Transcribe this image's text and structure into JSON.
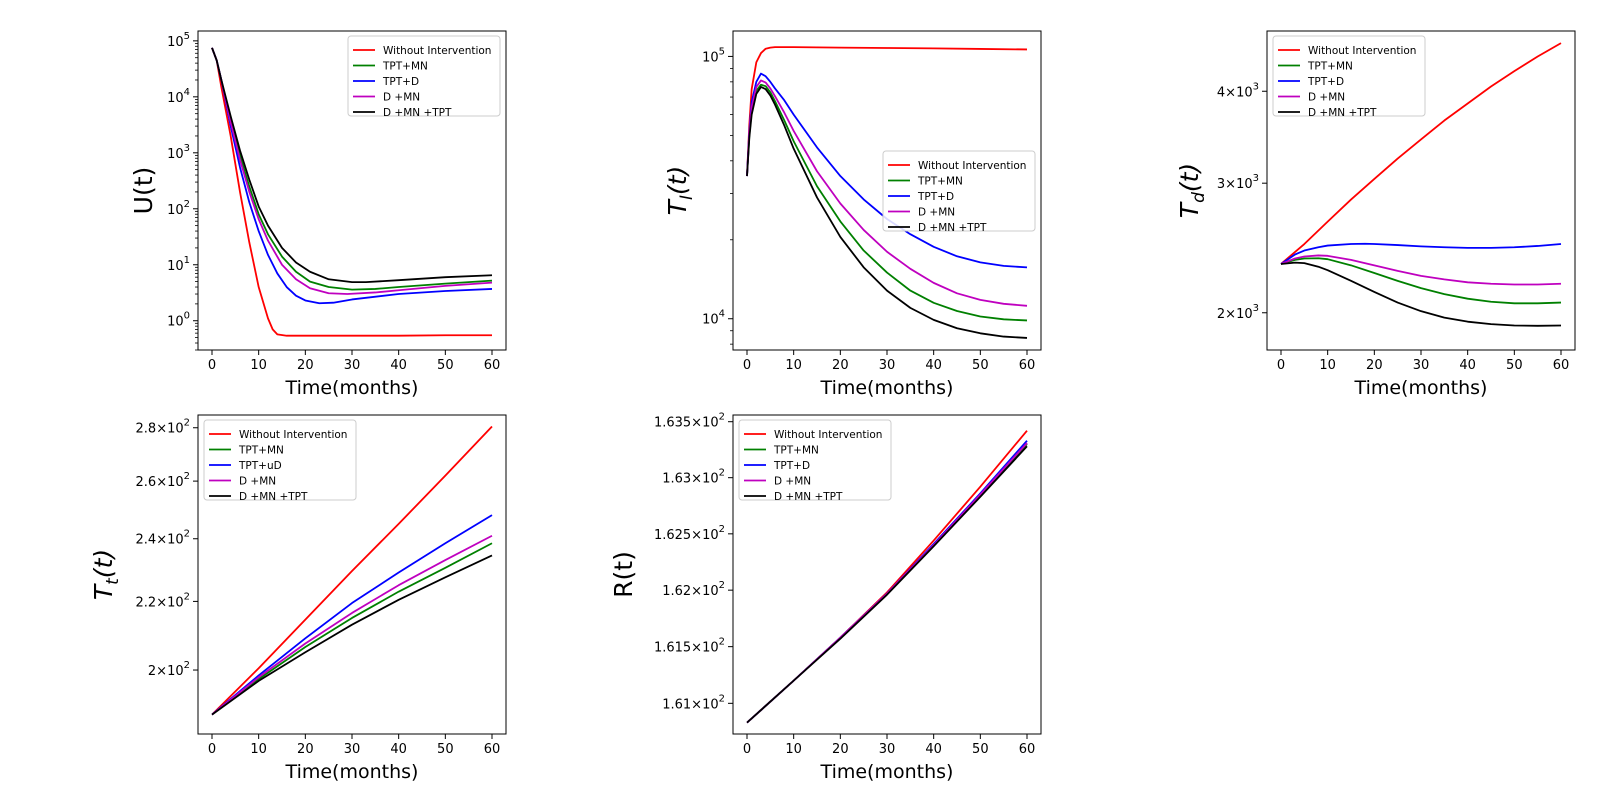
{
  "colors": {
    "red": "#ff0000",
    "green": "#008000",
    "blue": "#0000ff",
    "magenta": "#bf00bf",
    "black": "#000000"
  },
  "chart_data": [
    {
      "id": "U",
      "type": "line",
      "yscale": "log",
      "ylabel": "U(t)",
      "xlabel": "Time(months)",
      "xlim": [
        -3,
        63
      ],
      "xticks": [
        0,
        10,
        20,
        30,
        40,
        50,
        60
      ],
      "xtick_labels": [
        "0",
        "10",
        "20",
        "30",
        "40",
        "50",
        "60"
      ],
      "ylim": [
        0.3,
        150000
      ],
      "yticks": [
        1,
        10,
        100,
        1000,
        10000,
        100000
      ],
      "ytick_labels": [
        [
          "10",
          "0"
        ],
        [
          "10",
          "1"
        ],
        [
          "10",
          "2"
        ],
        [
          "10",
          "3"
        ],
        [
          "10",
          "4"
        ],
        [
          "10",
          "5"
        ]
      ],
      "legend_loc": "upper-right",
      "series": [
        {
          "name": "Without Intervention",
          "color": "red",
          "x": [
            0,
            1,
            2,
            4,
            6,
            8,
            10,
            12,
            13,
            14,
            16,
            20,
            30,
            40,
            50,
            60
          ],
          "y": [
            75000,
            45000,
            15000,
            2000,
            200,
            25,
            4,
            1.1,
            0.7,
            0.57,
            0.54,
            0.54,
            0.54,
            0.54,
            0.55,
            0.55
          ]
        },
        {
          "name": "TPT+MN",
          "color": "green",
          "x": [
            0,
            1,
            2,
            4,
            6,
            8,
            10,
            12,
            15,
            18,
            21,
            25,
            30,
            35,
            40,
            50,
            60
          ],
          "y": [
            75000,
            45000,
            20000,
            4000,
            900,
            250,
            80,
            35,
            14,
            7.5,
            5,
            4,
            3.6,
            3.7,
            4,
            4.6,
            5.2
          ]
        },
        {
          "name": "TPT+D",
          "color": "blue",
          "x": [
            0,
            1,
            2,
            4,
            6,
            8,
            10,
            12,
            14,
            16,
            18,
            20,
            23,
            26,
            30,
            40,
            50,
            60
          ],
          "y": [
            75000,
            45000,
            20000,
            3000,
            550,
            130,
            40,
            15,
            7,
            4,
            2.8,
            2.3,
            2.05,
            2.1,
            2.4,
            3.0,
            3.4,
            3.7
          ]
        },
        {
          "name": "D +MN",
          "color": "magenta",
          "x": [
            0,
            1,
            2,
            4,
            6,
            8,
            10,
            12,
            15,
            18,
            21,
            25,
            29,
            35,
            40,
            50,
            60
          ],
          "y": [
            75000,
            45000,
            20000,
            3500,
            750,
            200,
            65,
            27,
            10,
            5.5,
            3.8,
            3.1,
            3.0,
            3.2,
            3.5,
            4.2,
            4.8
          ]
        },
        {
          "name": "D +MN +TPT",
          "color": "black",
          "x": [
            0,
            1,
            2,
            4,
            6,
            8,
            10,
            12,
            15,
            18,
            21,
            25,
            30,
            33,
            40,
            50,
            60
          ],
          "y": [
            75000,
            45000,
            20000,
            4500,
            1100,
            330,
            110,
            50,
            20,
            11,
            7.5,
            5.5,
            4.9,
            4.9,
            5.3,
            6.0,
            6.5
          ]
        }
      ]
    },
    {
      "id": "TI",
      "type": "line",
      "yscale": "log",
      "ylabel": "T_I(t)",
      "ylabel_main": "T",
      "ylabel_sub": "I",
      "ylabel_tail": "(t)",
      "xlabel": "Time(months)",
      "xlim": [
        -3,
        63
      ],
      "xticks": [
        0,
        10,
        20,
        30,
        40,
        50,
        60
      ],
      "xtick_labels": [
        "0",
        "10",
        "20",
        "30",
        "40",
        "50",
        "60"
      ],
      "ylim": [
        7600,
        125000
      ],
      "yticks": [
        10000,
        100000
      ],
      "ytick_labels": [
        [
          "10",
          "4"
        ],
        [
          "10",
          "5"
        ]
      ],
      "legend_loc": "center-right",
      "series": [
        {
          "name": "Without Intervention",
          "color": "red",
          "x": [
            0,
            0.5,
            1,
            2,
            3,
            4,
            5,
            6,
            8,
            10,
            20,
            30,
            40,
            50,
            60
          ],
          "y": [
            35000,
            55000,
            75000,
            95000,
            103000,
            107000,
            108000,
            108500,
            108500,
            108500,
            108000,
            107700,
            107300,
            106800,
            106300
          ]
        },
        {
          "name": "TPT+MN",
          "color": "green",
          "x": [
            0,
            0.5,
            1,
            2,
            3,
            4,
            5,
            6,
            8,
            10,
            15,
            20,
            25,
            30,
            35,
            40,
            45,
            50,
            55,
            60
          ],
          "y": [
            35000,
            50000,
            62000,
            74000,
            78000,
            77000,
            73000,
            67500,
            57000,
            47500,
            32000,
            23500,
            18200,
            15000,
            12800,
            11500,
            10700,
            10200,
            9950,
            9850
          ]
        },
        {
          "name": "TPT+D",
          "color": "blue",
          "x": [
            0,
            0.5,
            1,
            2,
            3,
            4,
            5,
            6,
            8,
            10,
            15,
            20,
            25,
            30,
            35,
            40,
            45,
            50,
            55,
            60
          ],
          "y": [
            35000,
            52000,
            67000,
            80000,
            86000,
            84000,
            80000,
            75500,
            68000,
            60000,
            45000,
            35000,
            28500,
            24000,
            21000,
            18800,
            17300,
            16400,
            15900,
            15700
          ]
        },
        {
          "name": "D +MN",
          "color": "magenta",
          "x": [
            0,
            0.5,
            1,
            2,
            3,
            4,
            5,
            6,
            8,
            10,
            15,
            20,
            25,
            30,
            35,
            40,
            45,
            50,
            55,
            60
          ],
          "y": [
            35000,
            51000,
            64000,
            76500,
            81000,
            79500,
            75500,
            70500,
            61000,
            52000,
            36500,
            27500,
            21800,
            18000,
            15500,
            13700,
            12500,
            11800,
            11400,
            11200
          ]
        },
        {
          "name": "D +MN +TPT",
          "color": "black",
          "x": [
            0,
            0.5,
            1,
            2,
            3,
            4,
            5,
            6,
            8,
            10,
            15,
            20,
            25,
            30,
            35,
            40,
            45,
            50,
            55,
            60
          ],
          "y": [
            35000,
            49000,
            60000,
            72000,
            76500,
            75000,
            71000,
            65500,
            54500,
            44500,
            29000,
            20500,
            15700,
            12800,
            11000,
            9900,
            9200,
            8800,
            8550,
            8450
          ]
        }
      ]
    },
    {
      "id": "Td",
      "type": "line",
      "yscale": "log",
      "ylabel": "T_d(t)",
      "ylabel_main": "T",
      "ylabel_sub": "d",
      "ylabel_tail": "(t)",
      "xlabel": "Time(months)",
      "xlim": [
        -3,
        63
      ],
      "xticks": [
        0,
        10,
        20,
        30,
        40,
        50,
        60
      ],
      "xtick_labels": [
        "0",
        "10",
        "20",
        "30",
        "40",
        "50",
        "60"
      ],
      "ylim": [
        1780,
        4830
      ],
      "yticks": [
        2000,
        3000,
        4000
      ],
      "ytick_labels": [
        [
          "2",
          "10",
          "3"
        ],
        [
          "3",
          "10",
          "3"
        ],
        [
          "4",
          "10",
          "3"
        ]
      ],
      "legend_loc": "upper-left",
      "series": [
        {
          "name": "Without Intervention",
          "color": "red",
          "x": [
            0,
            5,
            10,
            15,
            20,
            25,
            30,
            35,
            40,
            45,
            50,
            55,
            60
          ],
          "y": [
            2330,
            2480,
            2660,
            2850,
            3040,
            3240,
            3440,
            3650,
            3850,
            4060,
            4260,
            4460,
            4650
          ]
        },
        {
          "name": "TPT+MN",
          "color": "green",
          "x": [
            0,
            3,
            5,
            8,
            10,
            15,
            20,
            25,
            30,
            35,
            40,
            45,
            50,
            55,
            60
          ],
          "y": [
            2330,
            2360,
            2370,
            2372,
            2365,
            2320,
            2265,
            2210,
            2160,
            2120,
            2090,
            2070,
            2060,
            2060,
            2065
          ]
        },
        {
          "name": "TPT+D",
          "color": "blue",
          "x": [
            0,
            3,
            5,
            8,
            10,
            15,
            18,
            20,
            25,
            30,
            35,
            40,
            45,
            50,
            55,
            60
          ],
          "y": [
            2330,
            2400,
            2430,
            2455,
            2468,
            2480,
            2482,
            2480,
            2472,
            2462,
            2455,
            2450,
            2450,
            2455,
            2465,
            2480
          ]
        },
        {
          "name": "D +MN",
          "color": "magenta",
          "x": [
            0,
            3,
            5,
            8,
            10,
            15,
            20,
            25,
            30,
            35,
            40,
            45,
            50,
            55,
            60
          ],
          "y": [
            2330,
            2370,
            2385,
            2393,
            2390,
            2360,
            2320,
            2280,
            2245,
            2220,
            2200,
            2190,
            2185,
            2185,
            2190
          ]
        },
        {
          "name": "D +MN +TPT",
          "color": "black",
          "x": [
            0,
            3,
            5,
            8,
            10,
            15,
            20,
            25,
            30,
            35,
            40,
            45,
            50,
            55,
            60
          ],
          "y": [
            2330,
            2340,
            2336,
            2310,
            2285,
            2210,
            2135,
            2065,
            2010,
            1970,
            1945,
            1930,
            1922,
            1920,
            1922
          ]
        }
      ]
    },
    {
      "id": "Tt",
      "type": "line",
      "yscale": "log",
      "ylabel": "T_t(t)",
      "ylabel_main": "T",
      "ylabel_sub": "t",
      "ylabel_tail": "(t)",
      "xlabel": "Time(months)",
      "xlim": [
        -3,
        63
      ],
      "xticks": [
        0,
        10,
        20,
        30,
        40,
        50,
        60
      ],
      "xtick_labels": [
        "0",
        "10",
        "20",
        "30",
        "40",
        "50",
        "60"
      ],
      "ylim": [
        183,
        285
      ],
      "yticks": [
        200,
        220,
        240,
        260,
        280
      ],
      "ytick_labels": [
        [
          "2",
          "10",
          "2"
        ],
        [
          "2.2",
          "10",
          "2"
        ],
        [
          "2.4",
          "10",
          "2"
        ],
        [
          "2.6",
          "10",
          "2"
        ],
        [
          "2.8",
          "10",
          "2"
        ]
      ],
      "legend_loc": "upper-left",
      "series": [
        {
          "name": "Without Intervention",
          "color": "red",
          "x": [
            0,
            10,
            20,
            30,
            40,
            50,
            60
          ],
          "y": [
            188,
            200.5,
            214.5,
            229.5,
            245,
            262,
            280.5
          ]
        },
        {
          "name": "TPT+MN",
          "color": "green",
          "x": [
            0,
            10,
            20,
            30,
            40,
            50,
            60
          ],
          "y": [
            188,
            197.5,
            206.5,
            215,
            223,
            230.5,
            238.5
          ]
        },
        {
          "name": "TPT+uD",
          "color": "blue",
          "x": [
            0,
            10,
            20,
            30,
            40,
            50,
            60
          ],
          "y": [
            188,
            198.5,
            209,
            219.5,
            229,
            238.5,
            248
          ]
        },
        {
          "name": "D +MN",
          "color": "magenta",
          "x": [
            0,
            10,
            20,
            30,
            40,
            50,
            60
          ],
          "y": [
            188,
            198,
            207.5,
            216.5,
            225,
            233,
            241
          ]
        },
        {
          "name": "D +MN +TPT",
          "color": "black",
          "x": [
            0,
            10,
            20,
            30,
            40,
            50,
            60
          ],
          "y": [
            188,
            197,
            205,
            213,
            220.5,
            227.5,
            234.5
          ]
        }
      ]
    },
    {
      "id": "R",
      "type": "line",
      "yscale": "log",
      "ylabel": "R(t)",
      "xlabel": "Time(months)",
      "xlim": [
        -3,
        63
      ],
      "xticks": [
        0,
        10,
        20,
        30,
        40,
        50,
        60
      ],
      "xtick_labels": [
        "0",
        "10",
        "20",
        "30",
        "40",
        "50",
        "60"
      ],
      "ylim": [
        160.73,
        163.56
      ],
      "yticks": [
        161.0,
        161.5,
        162.0,
        162.5,
        163.0,
        163.5
      ],
      "ytick_labels": [
        [
          "1.61",
          "10",
          "2"
        ],
        [
          "1.615",
          "10",
          "2"
        ],
        [
          "1.62",
          "10",
          "2"
        ],
        [
          "1.625",
          "10",
          "2"
        ],
        [
          "1.63",
          "10",
          "2"
        ],
        [
          "1.635",
          "10",
          "2"
        ]
      ],
      "legend_loc": "upper-left",
      "series": [
        {
          "name": "Without Intervention",
          "color": "red",
          "x": [
            0,
            10,
            20,
            30,
            40,
            50,
            60
          ],
          "y": [
            160.83,
            161.2,
            161.58,
            161.98,
            162.44,
            162.92,
            163.42
          ]
        },
        {
          "name": "TPT+MN",
          "color": "green",
          "x": [
            0,
            10,
            20,
            30,
            40,
            50,
            60
          ],
          "y": [
            160.83,
            161.2,
            161.58,
            161.97,
            162.4,
            162.84,
            163.3
          ]
        },
        {
          "name": "TPT+D",
          "color": "blue",
          "x": [
            0,
            10,
            20,
            30,
            40,
            50,
            60
          ],
          "y": [
            160.83,
            161.2,
            161.58,
            161.97,
            162.41,
            162.86,
            163.33
          ]
        },
        {
          "name": "D +MN",
          "color": "magenta",
          "x": [
            0,
            10,
            20,
            30,
            40,
            50,
            60
          ],
          "y": [
            160.83,
            161.2,
            161.58,
            161.97,
            162.4,
            162.85,
            163.31
          ]
        },
        {
          "name": "D +MN +TPT",
          "color": "black",
          "x": [
            0,
            10,
            20,
            30,
            40,
            50,
            60
          ],
          "y": [
            160.83,
            161.2,
            161.57,
            161.96,
            162.39,
            162.83,
            163.28
          ]
        }
      ]
    }
  ]
}
